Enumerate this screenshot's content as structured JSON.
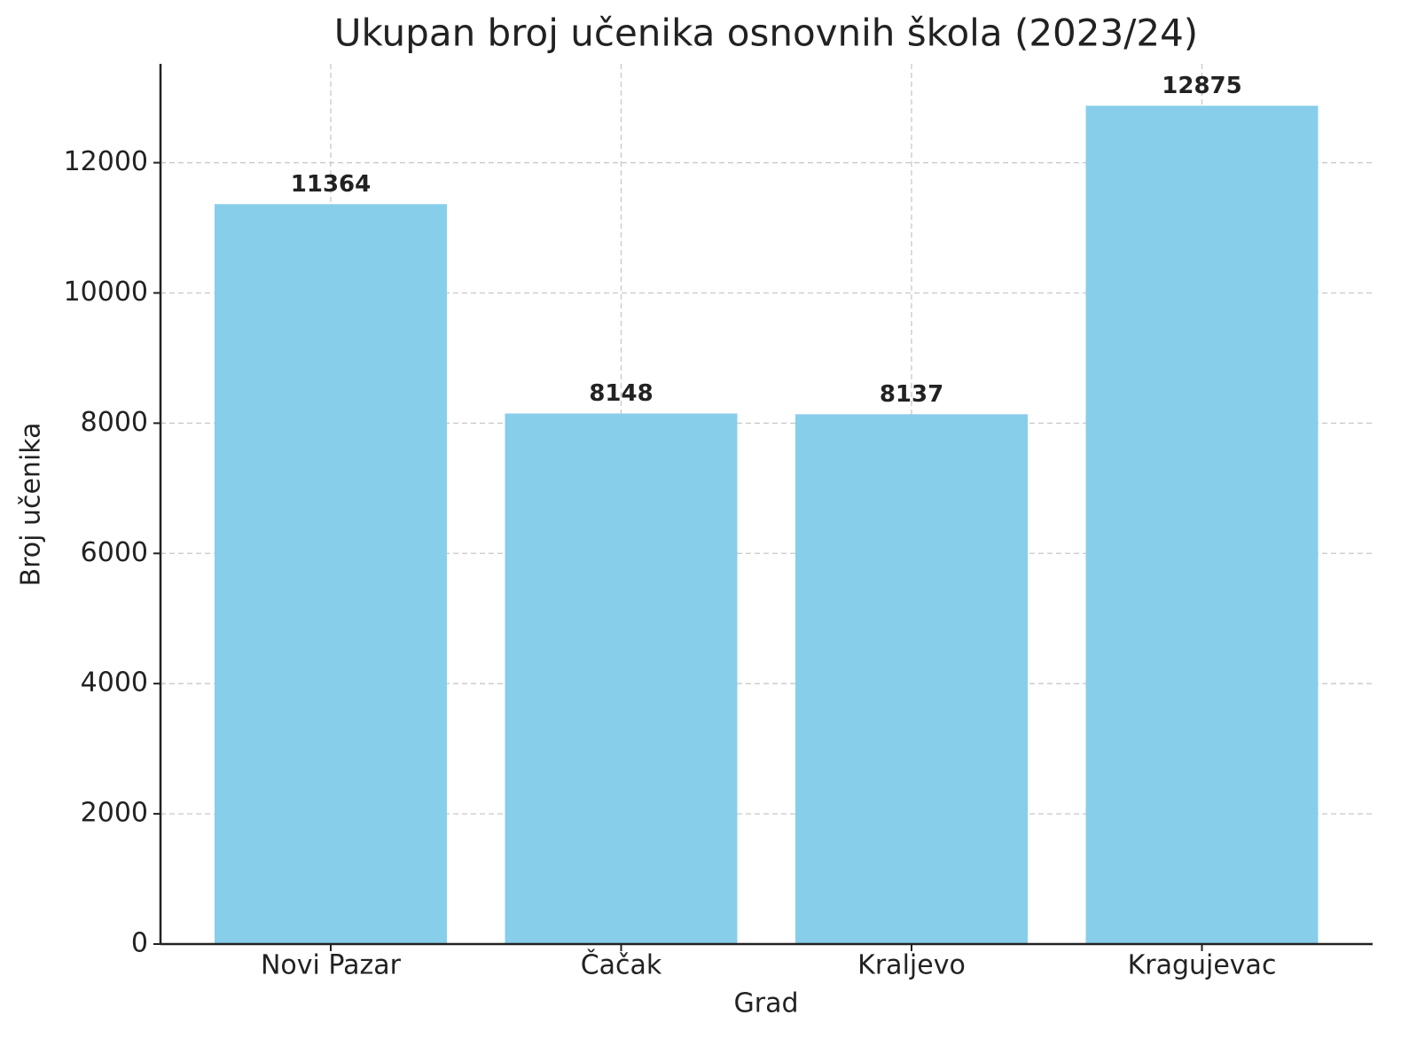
{
  "chart_data": {
    "type": "bar",
    "title": "Ukupan broj učenika osnovnih škola (2023/24)",
    "x_label": "Grad",
    "y_label": "Broj učenika",
    "categories": [
      "Novi Pazar",
      "Čačak",
      "Kraljevo",
      "Kragujevac"
    ],
    "values": [
      11364,
      8148,
      8137,
      12875
    ],
    "color": "#87ceeb",
    "ylim": [
      0,
      13518.75
    ],
    "yticks": [
      0,
      2000,
      4000,
      6000,
      8000,
      10000,
      12000
    ],
    "grid": true
  }
}
